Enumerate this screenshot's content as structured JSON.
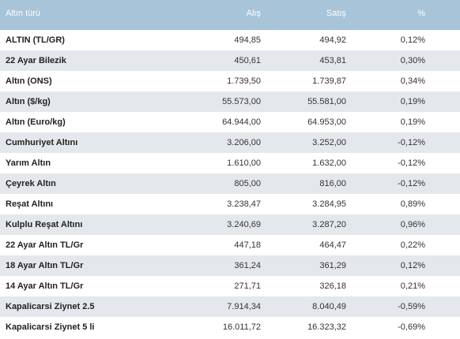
{
  "table": {
    "headers": {
      "name": "Altın türü",
      "buy": "Alış",
      "sell": "Satış",
      "change": "%"
    },
    "rows": [
      {
        "name": "ALTIN (TL/GR)",
        "buy": "494,85",
        "sell": "494,92",
        "change": "0,12%"
      },
      {
        "name": "22 Ayar Bilezik",
        "buy": "450,61",
        "sell": "453,81",
        "change": "0,30%"
      },
      {
        "name": "Altın (ONS)",
        "buy": "1.739,50",
        "sell": "1.739,87",
        "change": "0,34%"
      },
      {
        "name": "Altın ($/kg)",
        "buy": "55.573,00",
        "sell": "55.581,00",
        "change": "0,19%"
      },
      {
        "name": "Altın (Euro/kg)",
        "buy": "64.944,00",
        "sell": "64.953,00",
        "change": "0,19%"
      },
      {
        "name": "Cumhuriyet Altını",
        "buy": "3.206,00",
        "sell": "3.252,00",
        "change": "-0,12%"
      },
      {
        "name": "Yarım Altın",
        "buy": "1.610,00",
        "sell": "1.632,00",
        "change": "-0,12%"
      },
      {
        "name": "Çeyrek Altın",
        "buy": "805,00",
        "sell": "816,00",
        "change": "-0,12%"
      },
      {
        "name": "Reşat Altını",
        "buy": "3.238,47",
        "sell": "3.284,95",
        "change": "0,89%"
      },
      {
        "name": "Kulplu Reşat Altını",
        "buy": "3.240,69",
        "sell": "3.287,20",
        "change": "0,96%"
      },
      {
        "name": "22 Ayar Altın TL/Gr",
        "buy": "447,18",
        "sell": "464,47",
        "change": "0,22%"
      },
      {
        "name": "18 Ayar Altın TL/Gr",
        "buy": "361,24",
        "sell": "361,29",
        "change": "0,12%"
      },
      {
        "name": "14 Ayar Altın TL/Gr",
        "buy": "271,71",
        "sell": "326,18",
        "change": "0,21%"
      },
      {
        "name": "Kapalicarsi Ziynet 2.5",
        "buy": "7.914,34",
        "sell": "8.040,49",
        "change": "-0,59%"
      },
      {
        "name": "Kapalicarsi Ziynet 5 li",
        "buy": "16.011,72",
        "sell": "16.323,32",
        "change": "-0,69%"
      }
    ]
  },
  "colors": {
    "header_bg": "#a7c4d9",
    "stripe_bg": "#e4e8ec",
    "header_text": "#ffffff"
  }
}
